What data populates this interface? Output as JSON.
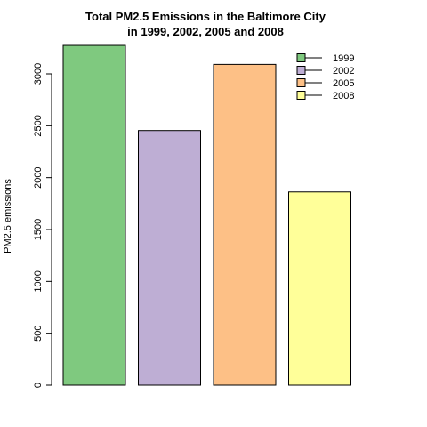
{
  "chart_data": {
    "type": "bar",
    "title": "Total PM2.5 Emissions in the Baltimore City",
    "subtitle": "in 1999, 2002, 2005 and 2008",
    "xlabel": "",
    "ylabel": "PM2.5 emissions",
    "categories": [
      "1999",
      "2002",
      "2005",
      "2008"
    ],
    "values": [
      3274,
      2454,
      3091,
      1862
    ],
    "colors": [
      "#7FC97F",
      "#BEAED4",
      "#FDC086",
      "#FFFF99"
    ],
    "ylim": [
      0,
      3300
    ],
    "yticks": [
      0,
      500,
      1000,
      1500,
      2000,
      2500,
      3000
    ],
    "legend": {
      "position": "top-right",
      "entries": [
        "1999",
        "2002",
        "2005",
        "2008"
      ]
    },
    "grid": false
  }
}
